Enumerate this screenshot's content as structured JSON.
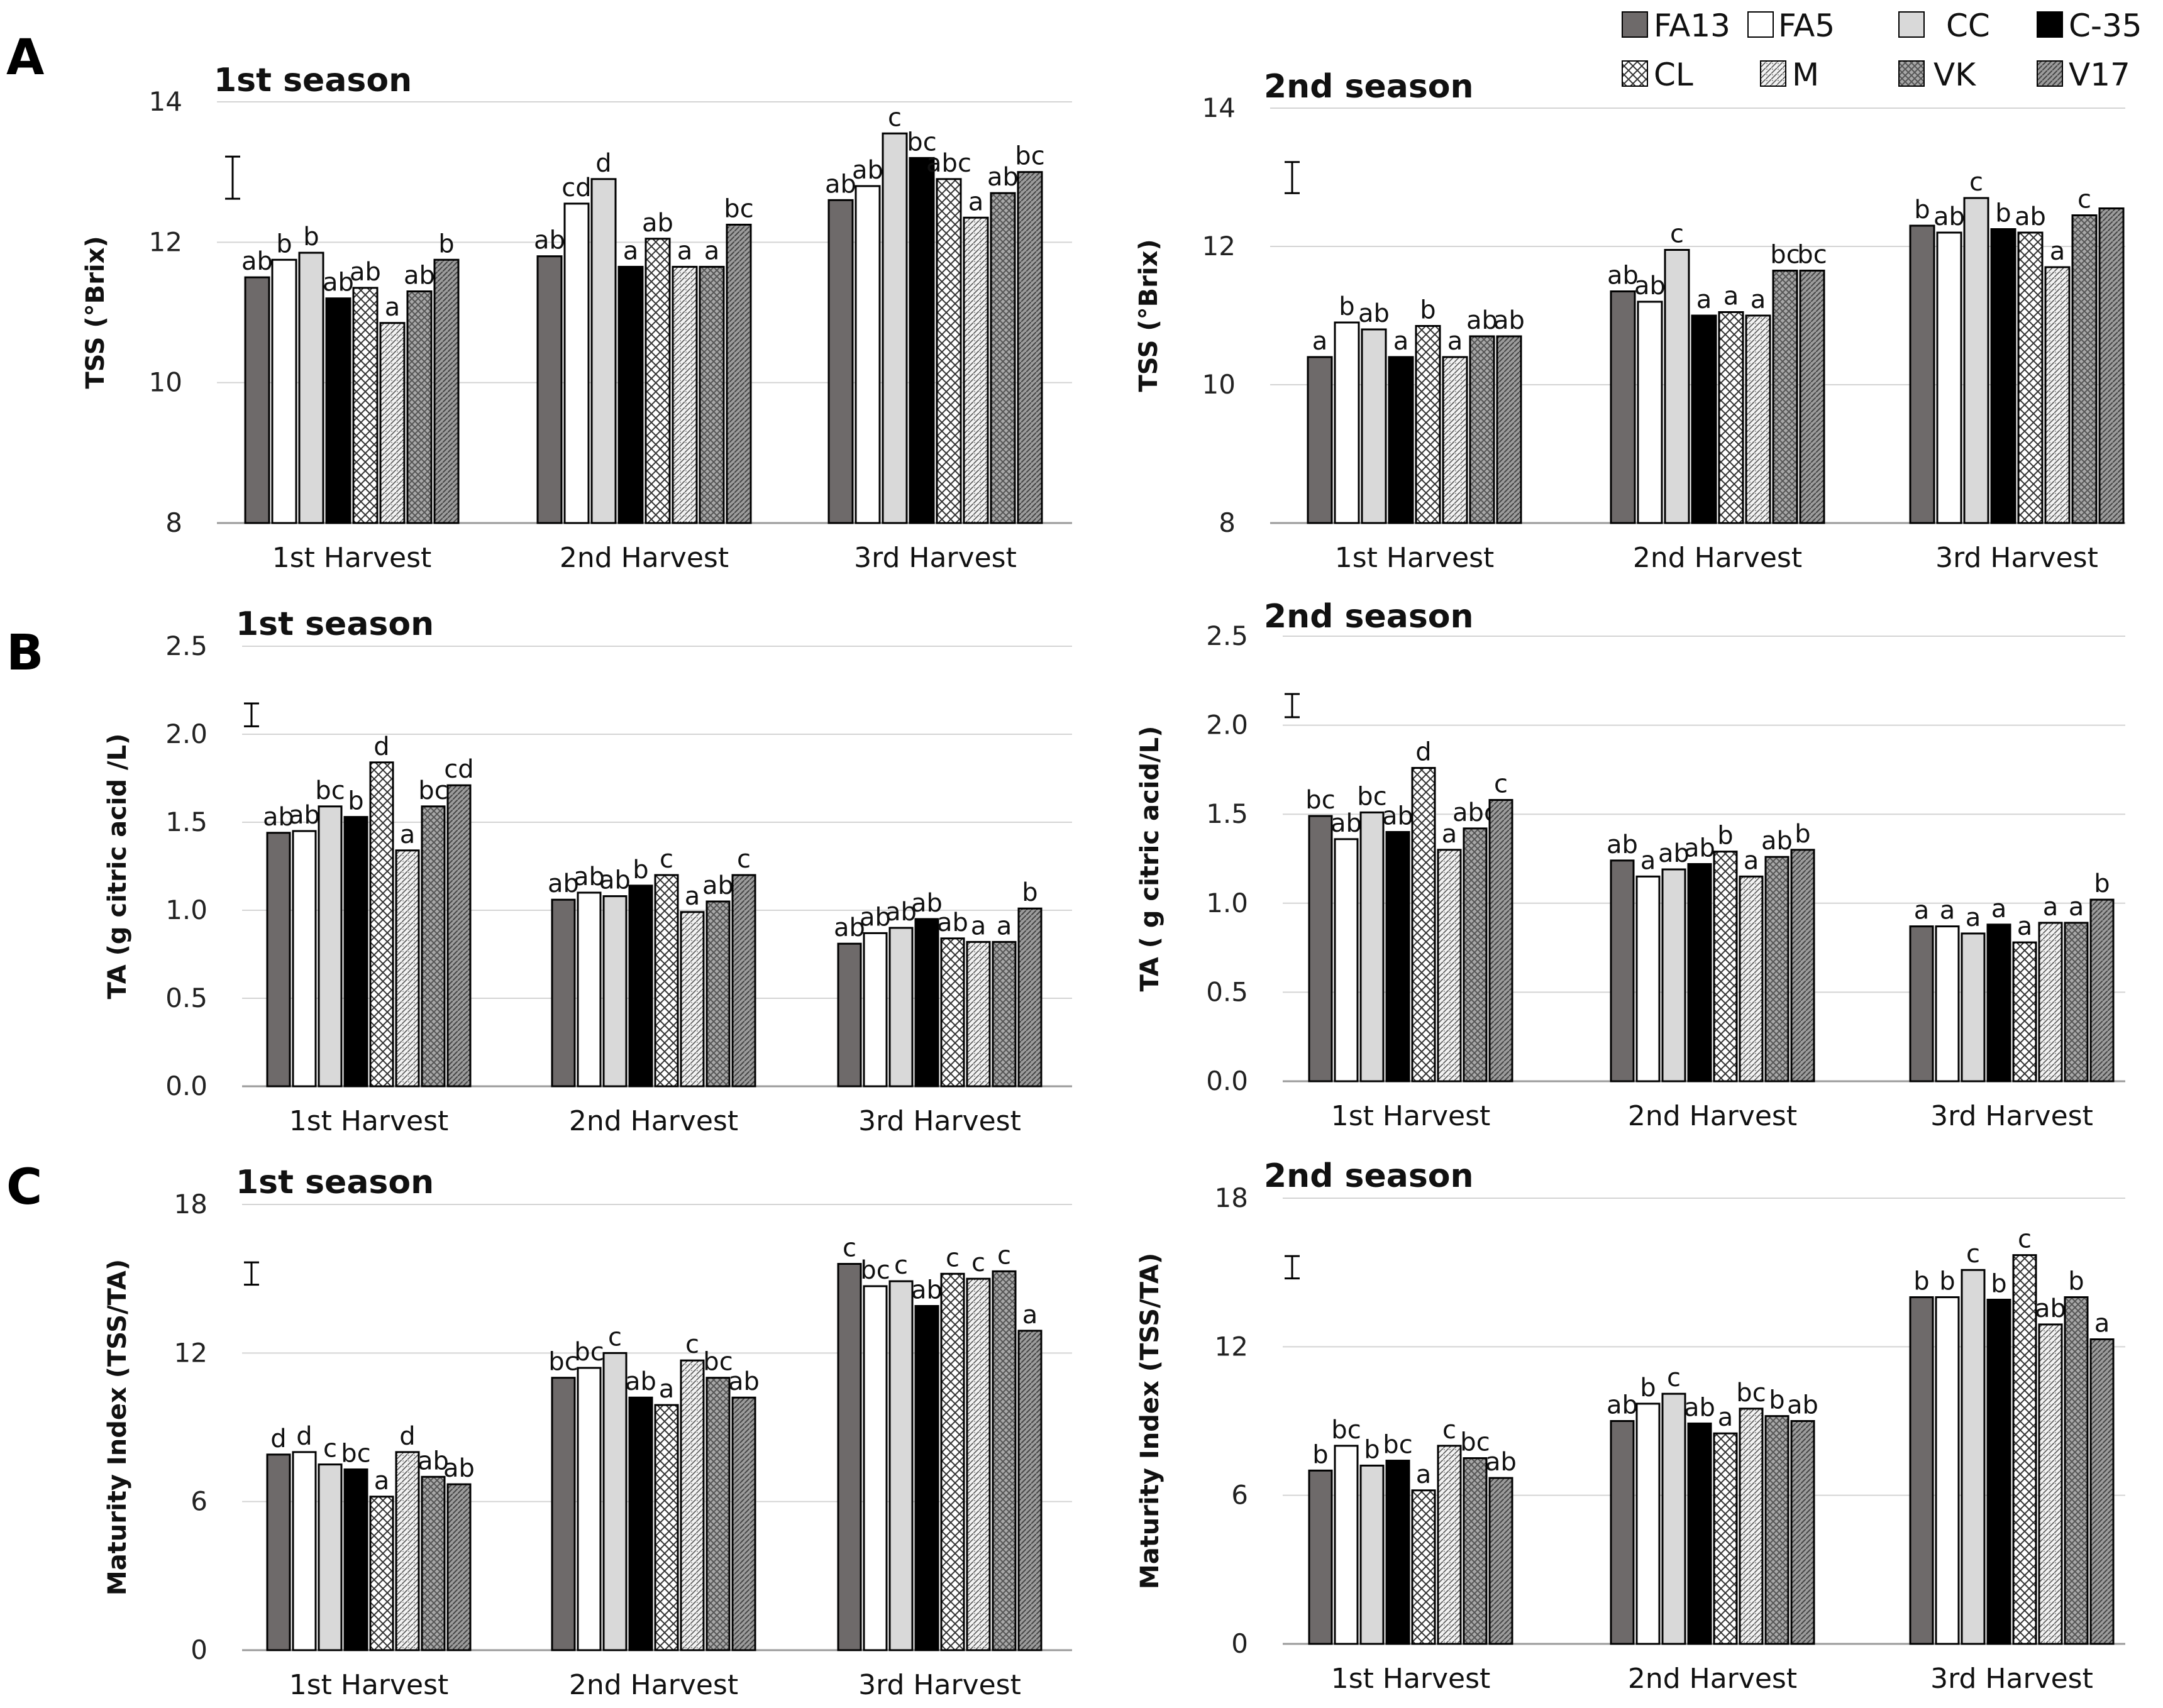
{
  "legend": [
    {
      "key": "FA13",
      "label": "FA13",
      "fill": "#6e6a6a"
    },
    {
      "key": "FA5",
      "label": "FA5",
      "fill": "#ffffff"
    },
    {
      "key": "CC",
      "label": "CC",
      "fill": "#d9d9d9"
    },
    {
      "key": "C35",
      "label": "C-35",
      "fill": "#000000"
    },
    {
      "key": "CL",
      "label": "CL",
      "fill": "pattern-cl"
    },
    {
      "key": "M",
      "label": "M",
      "fill": "pattern-m"
    },
    {
      "key": "VK",
      "label": "VK",
      "fill": "pattern-vk"
    },
    {
      "key": "V17",
      "label": "V17",
      "fill": "pattern-v17"
    }
  ],
  "panel_labels": [
    "A",
    "B",
    "C"
  ],
  "chart_data": [
    {
      "type": "bar",
      "panel": "A",
      "title": "1st season",
      "ylabel": "TSS (°Brix)",
      "ylim": [
        8,
        14
      ],
      "yticks": [
        "8",
        "10",
        "12",
        "14"
      ],
      "yticks_values": [
        8,
        10,
        12,
        14
      ],
      "categories": [
        "1st Harvest",
        "2nd Harvest",
        "3rd Harvest"
      ],
      "error_bar_size": 0.6,
      "series": [
        {
          "name": "FA13",
          "values": [
            11.5,
            11.8,
            12.6
          ],
          "letters": [
            "ab",
            "ab",
            "ab"
          ]
        },
        {
          "name": "FA5",
          "values": [
            11.75,
            12.55,
            12.8
          ],
          "letters": [
            "b",
            "cd",
            "ab"
          ]
        },
        {
          "name": "CC",
          "values": [
            11.85,
            12.9,
            13.55
          ],
          "letters": [
            "b",
            "d",
            "c"
          ]
        },
        {
          "name": "C-35",
          "values": [
            11.2,
            11.65,
            13.2
          ],
          "letters": [
            "ab",
            "a",
            "bc"
          ]
        },
        {
          "name": "CL",
          "values": [
            11.35,
            12.05,
            12.9
          ],
          "letters": [
            "ab",
            "ab",
            "abc"
          ]
        },
        {
          "name": "M",
          "values": [
            10.85,
            11.65,
            12.35
          ],
          "letters": [
            "a",
            "a",
            "a"
          ]
        },
        {
          "name": "VK",
          "values": [
            11.3,
            11.65,
            12.7
          ],
          "letters": [
            "ab",
            "a",
            "ab"
          ]
        },
        {
          "name": "V17",
          "values": [
            11.75,
            12.25,
            13.0
          ],
          "letters": [
            "b",
            "bc",
            "bc"
          ]
        }
      ]
    },
    {
      "type": "bar",
      "panel": "A",
      "title": "2nd season",
      "ylabel": "TSS (°Brix)",
      "ylim": [
        8,
        14
      ],
      "yticks": [
        "8",
        "10",
        "12",
        "14"
      ],
      "yticks_values": [
        8,
        10,
        12,
        14
      ],
      "categories": [
        "1st Harvest",
        "2nd Harvest",
        "3rd Harvest"
      ],
      "error_bar_size": 0.45,
      "series": [
        {
          "name": "FA13",
          "values": [
            10.4,
            11.35,
            12.3
          ],
          "letters": [
            "a",
            "ab",
            "b"
          ]
        },
        {
          "name": "FA5",
          "values": [
            10.9,
            11.2,
            12.2
          ],
          "letters": [
            "b",
            "ab",
            "ab"
          ]
        },
        {
          "name": "CC",
          "values": [
            10.8,
            11.95,
            12.7
          ],
          "letters": [
            "ab",
            "c",
            "c"
          ]
        },
        {
          "name": "C-35",
          "values": [
            10.4,
            11.0,
            12.25
          ],
          "letters": [
            "a",
            "a",
            "b"
          ]
        },
        {
          "name": "CL",
          "values": [
            10.85,
            11.05,
            12.2
          ],
          "letters": [
            "b",
            "a",
            "ab"
          ]
        },
        {
          "name": "M",
          "values": [
            10.4,
            11.0,
            11.7
          ],
          "letters": [
            "a",
            "a",
            "a"
          ]
        },
        {
          "name": "VK",
          "values": [
            10.7,
            11.65,
            12.45
          ],
          "letters": [
            "ab",
            "bc",
            "c"
          ]
        },
        {
          "name": "V17",
          "values": [
            10.7,
            11.65,
            12.55
          ],
          "letters": [
            "ab",
            "bc",
            ""
          ]
        }
      ]
    },
    {
      "type": "bar",
      "panel": "B",
      "title": "1st season",
      "ylabel": "TA (g citric acid /L)",
      "ylim": [
        0,
        2.5
      ],
      "yticks": [
        "0.0",
        "0.5",
        "1.0",
        "1.5",
        "2.0",
        "2.5"
      ],
      "yticks_values": [
        0,
        0.5,
        1.0,
        1.5,
        2.0,
        2.5
      ],
      "categories": [
        "1st Harvest",
        "2nd Harvest",
        "3rd Harvest"
      ],
      "error_bar_size": 0.13,
      "series": [
        {
          "name": "FA13",
          "values": [
            1.44,
            1.06,
            0.81
          ],
          "letters": [
            "ab",
            "ab",
            "ab"
          ]
        },
        {
          "name": "FA5",
          "values": [
            1.45,
            1.1,
            0.87
          ],
          "letters": [
            "ab",
            "ab",
            "ab"
          ]
        },
        {
          "name": "CC",
          "values": [
            1.59,
            1.08,
            0.9
          ],
          "letters": [
            "bc",
            "ab",
            "ab"
          ]
        },
        {
          "name": "C-35",
          "values": [
            1.53,
            1.14,
            0.95
          ],
          "letters": [
            "b",
            "b",
            "ab"
          ]
        },
        {
          "name": "CL",
          "values": [
            1.84,
            1.2,
            0.84
          ],
          "letters": [
            "d",
            "c",
            "ab"
          ]
        },
        {
          "name": "M",
          "values": [
            1.34,
            0.99,
            0.82
          ],
          "letters": [
            "a",
            "a",
            "a"
          ]
        },
        {
          "name": "VK",
          "values": [
            1.59,
            1.05,
            0.82
          ],
          "letters": [
            "bc",
            "ab",
            "a"
          ]
        },
        {
          "name": "V17",
          "values": [
            1.71,
            1.2,
            1.01
          ],
          "letters": [
            "cd",
            "c",
            "b"
          ]
        }
      ]
    },
    {
      "type": "bar",
      "panel": "B",
      "title": "2nd season",
      "ylabel": "TA ( g citric acid/L)",
      "ylim": [
        0,
        2.5
      ],
      "yticks": [
        "0.0",
        "0.5",
        "1.0",
        "1.5",
        "2.0",
        "2.5"
      ],
      "yticks_values": [
        0,
        0.5,
        1.0,
        1.5,
        2.0,
        2.5
      ],
      "categories": [
        "1st Harvest",
        "2nd Harvest",
        "3rd Harvest"
      ],
      "error_bar_size": 0.13,
      "series": [
        {
          "name": "FA13",
          "values": [
            1.49,
            1.24,
            0.87
          ],
          "letters": [
            "bc",
            "ab",
            "a"
          ]
        },
        {
          "name": "FA5",
          "values": [
            1.36,
            1.15,
            0.87
          ],
          "letters": [
            "ab",
            "a",
            "a"
          ]
        },
        {
          "name": "CC",
          "values": [
            1.51,
            1.19,
            0.83
          ],
          "letters": [
            "bc",
            "ab",
            "a"
          ]
        },
        {
          "name": "C-35",
          "values": [
            1.4,
            1.22,
            0.88
          ],
          "letters": [
            "ab",
            "ab",
            "a"
          ]
        },
        {
          "name": "CL",
          "values": [
            1.76,
            1.29,
            0.78
          ],
          "letters": [
            "d",
            "b",
            "a"
          ]
        },
        {
          "name": "M",
          "values": [
            1.3,
            1.15,
            0.89
          ],
          "letters": [
            "a",
            "a",
            "a"
          ]
        },
        {
          "name": "VK",
          "values": [
            1.42,
            1.26,
            0.89
          ],
          "letters": [
            "abc",
            "ab",
            "a"
          ]
        },
        {
          "name": "V17",
          "values": [
            1.58,
            1.3,
            1.02
          ],
          "letters": [
            "c",
            "b",
            "b"
          ]
        }
      ]
    },
    {
      "type": "bar",
      "panel": "C",
      "title": "1st season",
      "ylabel": "Maturity Index (TSS/TA)",
      "ylim": [
        0,
        18
      ],
      "yticks": [
        "0",
        "6",
        "12",
        "18"
      ],
      "yticks_values": [
        0,
        6,
        12,
        18
      ],
      "categories": [
        "1st Harvest",
        "2nd Harvest",
        "3rd Harvest"
      ],
      "error_bar_size": 0.9,
      "series": [
        {
          "name": "FA13",
          "values": [
            7.9,
            11.0,
            15.6
          ],
          "letters": [
            "d",
            "bc",
            "c"
          ]
        },
        {
          "name": "FA5",
          "values": [
            8.0,
            11.4,
            14.7
          ],
          "letters": [
            "d",
            "bc",
            "bc"
          ]
        },
        {
          "name": "CC",
          "values": [
            7.5,
            12.0,
            14.9
          ],
          "letters": [
            "c",
            "c",
            "c"
          ]
        },
        {
          "name": "C-35",
          "values": [
            7.3,
            10.2,
            13.9
          ],
          "letters": [
            "bc",
            "ab",
            "ab"
          ]
        },
        {
          "name": "CL",
          "values": [
            6.2,
            9.9,
            15.2
          ],
          "letters": [
            "a",
            "a",
            "c"
          ]
        },
        {
          "name": "M",
          "values": [
            8.0,
            11.7,
            15.0
          ],
          "letters": [
            "d",
            "c",
            "c"
          ]
        },
        {
          "name": "VK",
          "values": [
            7.0,
            11.0,
            15.3
          ],
          "letters": [
            "ab",
            "bc",
            "c"
          ]
        },
        {
          "name": "V17",
          "values": [
            6.7,
            10.2,
            12.9
          ],
          "letters": [
            "ab",
            "ab",
            "a"
          ]
        }
      ]
    },
    {
      "type": "bar",
      "panel": "C",
      "title": "2nd season",
      "ylabel": "Maturity Index (TSS/TA)",
      "ylim": [
        0,
        18
      ],
      "yticks": [
        "0",
        "6",
        "12",
        "18"
      ],
      "yticks_values": [
        0,
        6,
        12,
        18
      ],
      "categories": [
        "1st Harvest",
        "2nd Harvest",
        "3rd Harvest"
      ],
      "error_bar_size": 0.9,
      "series": [
        {
          "name": "FA13",
          "values": [
            7.0,
            9.0,
            14.0
          ],
          "letters": [
            "b",
            "ab",
            "b"
          ]
        },
        {
          "name": "FA5",
          "values": [
            8.0,
            9.7,
            14.0
          ],
          "letters": [
            "bc",
            "b",
            "b"
          ]
        },
        {
          "name": "CC",
          "values": [
            7.2,
            10.1,
            15.1
          ],
          "letters": [
            "b",
            "c",
            "c"
          ]
        },
        {
          "name": "C-35",
          "values": [
            7.4,
            8.9,
            13.9
          ],
          "letters": [
            "bc",
            "ab",
            "b"
          ]
        },
        {
          "name": "CL",
          "values": [
            6.2,
            8.5,
            15.7
          ],
          "letters": [
            "a",
            "a",
            "c"
          ]
        },
        {
          "name": "M",
          "values": [
            8.0,
            9.5,
            12.9
          ],
          "letters": [
            "c",
            "bc",
            "ab"
          ]
        },
        {
          "name": "VK",
          "values": [
            7.5,
            9.2,
            14.0
          ],
          "letters": [
            "bc",
            "b",
            "b"
          ]
        },
        {
          "name": "V17",
          "values": [
            6.7,
            9.0,
            12.3
          ],
          "letters": [
            "ab",
            "ab",
            "a"
          ]
        }
      ]
    }
  ]
}
